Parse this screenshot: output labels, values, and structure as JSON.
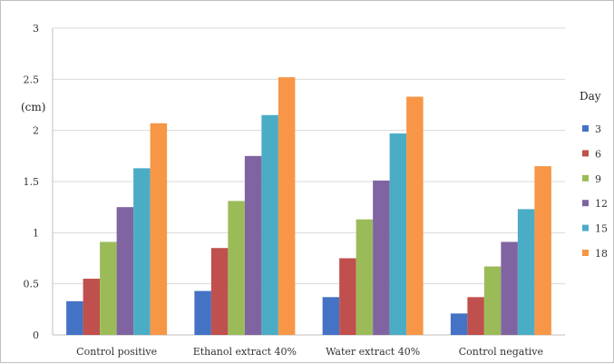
{
  "chart_data": {
    "type": "bar",
    "categories": [
      "Control positive",
      "Ethanol extract 40%",
      "Water extract 40%",
      "Control negative"
    ],
    "series": [
      {
        "name": "3",
        "color": "#4472C4",
        "values": [
          0.33,
          0.43,
          0.37,
          0.21
        ]
      },
      {
        "name": "6",
        "color": "#C0504D",
        "values": [
          0.55,
          0.85,
          0.75,
          0.37
        ]
      },
      {
        "name": "9",
        "color": "#9BBB59",
        "values": [
          0.91,
          1.31,
          1.13,
          0.67
        ]
      },
      {
        "name": "12",
        "color": "#8064A2",
        "values": [
          1.25,
          1.75,
          1.51,
          0.91
        ]
      },
      {
        "name": "15",
        "color": "#4BACC6",
        "values": [
          1.63,
          2.15,
          1.97,
          1.23
        ]
      },
      {
        "name": "18",
        "color": "#F79646",
        "values": [
          2.07,
          2.52,
          2.33,
          1.65
        ]
      }
    ],
    "ylabel": "(cm)",
    "legend_title": "Day",
    "yticks": [
      "0",
      "0.5",
      "1",
      "1.5",
      "2",
      "2.5",
      "3"
    ],
    "ylim": [
      0,
      3
    ],
    "grid": true,
    "legend_position": "right"
  }
}
